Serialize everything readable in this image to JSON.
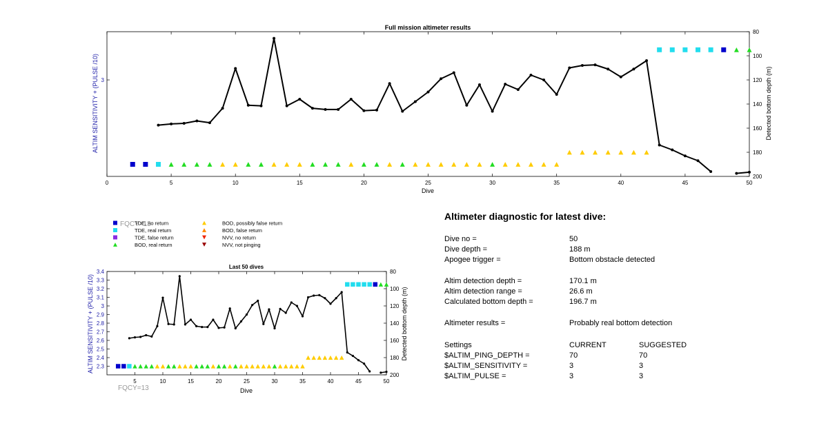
{
  "colors": {
    "tde_no_return": "#0000CC",
    "tde_real_return": "#22DDEE",
    "tde_false_return": "#8A2BE2",
    "bod_real_return": "#22DD22",
    "bod_possibly_false_return": "#FFCC00",
    "bod_false_return": "#FF8800",
    "nvv_no_return": "#EE2200",
    "nvv_not_pinging": "#990000",
    "axis_label_left": "#2222AA",
    "depth_line": "#000000"
  },
  "legend": {
    "items": [
      {
        "label": "TDE, no return",
        "category": "tde_no_return",
        "marker": "square-icon"
      },
      {
        "label": "TDE, real return",
        "category": "tde_real_return",
        "marker": "square-icon"
      },
      {
        "label": "TDE, false return",
        "category": "tde_false_return",
        "marker": "square-icon"
      },
      {
        "label": "BOD, real return",
        "category": "bod_real_return",
        "marker": "triangle-up-icon"
      },
      {
        "label": "BOD, possibly false return",
        "category": "bod_possibly_false_return",
        "marker": "triangle-up-icon"
      },
      {
        "label": "BOD, false return",
        "category": "bod_false_return",
        "marker": "triangle-up-icon"
      },
      {
        "label": "NVV, no return",
        "category": "nvv_no_return",
        "marker": "triangle-down-icon"
      },
      {
        "label": "NVV, not pinging",
        "category": "nvv_not_pinging",
        "marker": "triangle-down-icon"
      }
    ],
    "overlay_text": "FQCY=13"
  },
  "bottom_label": "FQCY=13",
  "chart_data": [
    {
      "id": "full",
      "type": "line",
      "title": "Full mission altimeter results",
      "xlabel": "Dive",
      "ylabel": "ALTIM SENSITIVITY + (PULSE /10)",
      "y2label": "Detected bottom depth (m)",
      "xlim": [
        0,
        50
      ],
      "xticks": [
        0,
        5,
        10,
        15,
        20,
        25,
        30,
        35,
        40,
        45,
        50
      ],
      "ylim": [
        2.2,
        3.4
      ],
      "yticks": [
        3
      ],
      "y2lim": [
        80,
        200
      ],
      "y2ticks": [
        80,
        100,
        120,
        140,
        160,
        180,
        200
      ],
      "y2_reversed": true,
      "grid": false,
      "series": [
        {
          "role": "detected_bottom_depth",
          "x": [
            4,
            5,
            6,
            7,
            8,
            9,
            10,
            11,
            12,
            13,
            14,
            15,
            16,
            17,
            18,
            19,
            20,
            21,
            22,
            23,
            24,
            25,
            26,
            27,
            28,
            29,
            30,
            31,
            32,
            33,
            34,
            35,
            36,
            37,
            38,
            39,
            40,
            41,
            42,
            43,
            44,
            45,
            46,
            47,
            49,
            50
          ],
          "y": [
            157.5,
            156.5,
            156,
            154,
            155.5,
            143.5,
            110.5,
            141,
            141.5,
            85.5,
            141.5,
            136,
            143.5,
            144.5,
            144.5,
            136,
            145.5,
            145,
            123,
            146,
            138,
            130,
            119,
            114,
            141,
            124,
            146,
            123.5,
            128,
            116,
            120,
            132,
            110,
            108,
            107.5,
            111,
            117.5,
            111,
            104,
            174,
            178,
            183,
            187,
            196,
            197.5,
            196.5
          ]
        }
      ],
      "markers": {
        "y_level": 180,
        "points": [
          {
            "x": 2,
            "y": 190,
            "category": "tde_no_return"
          },
          {
            "x": 3,
            "y": 190,
            "category": "tde_no_return"
          },
          {
            "x": 4,
            "y": 190,
            "category": "tde_real_return"
          },
          {
            "x": 5,
            "y": 190,
            "category": "bod_real_return"
          },
          {
            "x": 6,
            "y": 190,
            "category": "bod_real_return"
          },
          {
            "x": 7,
            "y": 190,
            "category": "bod_real_return"
          },
          {
            "x": 8,
            "y": 190,
            "category": "bod_real_return"
          },
          {
            "x": 9,
            "y": 190,
            "category": "bod_possibly_false_return"
          },
          {
            "x": 10,
            "y": 190,
            "category": "bod_possibly_false_return"
          },
          {
            "x": 11,
            "y": 190,
            "category": "bod_real_return"
          },
          {
            "x": 12,
            "y": 190,
            "category": "bod_real_return"
          },
          {
            "x": 13,
            "y": 190,
            "category": "bod_possibly_false_return"
          },
          {
            "x": 14,
            "y": 190,
            "category": "bod_possibly_false_return"
          },
          {
            "x": 15,
            "y": 190,
            "category": "bod_possibly_false_return"
          },
          {
            "x": 16,
            "y": 190,
            "category": "bod_real_return"
          },
          {
            "x": 17,
            "y": 190,
            "category": "bod_real_return"
          },
          {
            "x": 18,
            "y": 190,
            "category": "bod_real_return"
          },
          {
            "x": 19,
            "y": 190,
            "category": "bod_possibly_false_return"
          },
          {
            "x": 20,
            "y": 190,
            "category": "bod_real_return"
          },
          {
            "x": 21,
            "y": 190,
            "category": "bod_real_return"
          },
          {
            "x": 22,
            "y": 190,
            "category": "bod_possibly_false_return"
          },
          {
            "x": 23,
            "y": 190,
            "category": "bod_real_return"
          },
          {
            "x": 24,
            "y": 190,
            "category": "bod_possibly_false_return"
          },
          {
            "x": 25,
            "y": 190,
            "category": "bod_possibly_false_return"
          },
          {
            "x": 26,
            "y": 190,
            "category": "bod_possibly_false_return"
          },
          {
            "x": 27,
            "y": 190,
            "category": "bod_possibly_false_return"
          },
          {
            "x": 28,
            "y": 190,
            "category": "bod_possibly_false_return"
          },
          {
            "x": 29,
            "y": 190,
            "category": "bod_possibly_false_return"
          },
          {
            "x": 30,
            "y": 190,
            "category": "bod_real_return"
          },
          {
            "x": 31,
            "y": 190,
            "category": "bod_possibly_false_return"
          },
          {
            "x": 32,
            "y": 190,
            "category": "bod_possibly_false_return"
          },
          {
            "x": 33,
            "y": 190,
            "category": "bod_possibly_false_return"
          },
          {
            "x": 34,
            "y": 190,
            "category": "bod_possibly_false_return"
          },
          {
            "x": 35,
            "y": 190,
            "category": "bod_possibly_false_return"
          },
          {
            "x": 36,
            "y": 180,
            "category": "bod_possibly_false_return"
          },
          {
            "x": 37,
            "y": 180,
            "category": "bod_possibly_false_return"
          },
          {
            "x": 38,
            "y": 180,
            "category": "bod_possibly_false_return"
          },
          {
            "x": 39,
            "y": 180,
            "category": "bod_possibly_false_return"
          },
          {
            "x": 40,
            "y": 180,
            "category": "bod_possibly_false_return"
          },
          {
            "x": 41,
            "y": 180,
            "category": "bod_possibly_false_return"
          },
          {
            "x": 42,
            "y": 180,
            "category": "bod_possibly_false_return"
          },
          {
            "x": 43,
            "y": 95,
            "category": "tde_real_return"
          },
          {
            "x": 44,
            "y": 95,
            "category": "tde_real_return"
          },
          {
            "x": 45,
            "y": 95,
            "category": "tde_real_return"
          },
          {
            "x": 46,
            "y": 95,
            "category": "tde_real_return"
          },
          {
            "x": 47,
            "y": 95,
            "category": "tde_real_return"
          },
          {
            "x": 48,
            "y": 95,
            "category": "tde_no_return"
          },
          {
            "x": 49,
            "y": 95,
            "category": "bod_real_return"
          },
          {
            "x": 50,
            "y": 95,
            "category": "bod_real_return"
          }
        ]
      }
    },
    {
      "id": "last50",
      "type": "line",
      "title": "Last 50 dives",
      "xlabel": "Dive",
      "ylabel": "ALTIM SENSITIVITY + (PULSE /10)",
      "y2label": "Detected bottom depth (m)",
      "xlim": [
        0,
        50
      ],
      "xticks": [
        5,
        10,
        15,
        20,
        25,
        30,
        35,
        40,
        45,
        50
      ],
      "ylim": [
        2.2,
        3.4
      ],
      "yticks": [
        2.3,
        2.4,
        2.5,
        2.6,
        2.7,
        2.8,
        2.9,
        3,
        3.1,
        3.2,
        3.3,
        3.4
      ],
      "y2lim": [
        80,
        200
      ],
      "y2ticks": [
        80,
        100,
        120,
        140,
        160,
        180,
        200
      ],
      "y2_reversed": true,
      "grid": false,
      "series_ref": "full"
    }
  ],
  "diagnostic": {
    "title": "Altimeter diagnostic for latest dive:",
    "rows": [
      {
        "label": "Dive no =",
        "value": "50"
      },
      {
        "label": "Dive depth =",
        "value": "188 m"
      },
      {
        "label": "Apogee trigger =",
        "value": "Bottom obstacle detected"
      },
      {
        "label": "Altim detection depth =",
        "value": "170.1 m"
      },
      {
        "label": "Altim detection range =",
        "value": "26.6 m"
      },
      {
        "label": "Calculated bottom depth =",
        "value": "196.7 m"
      },
      {
        "label": "Altimeter results =",
        "value": "Probably real bottom detection"
      }
    ],
    "settings_header": {
      "label": "Settings",
      "current": "CURRENT",
      "suggested": "SUGGESTED"
    },
    "settings": [
      {
        "name": "$ALTIM_PING_DEPTH =",
        "current": "70",
        "suggested": "70"
      },
      {
        "name": "$ALTIM_SENSITIVITY =",
        "current": "3",
        "suggested": "3"
      },
      {
        "name": "$ALTIM_PULSE =",
        "current": "3",
        "suggested": "3"
      }
    ]
  }
}
